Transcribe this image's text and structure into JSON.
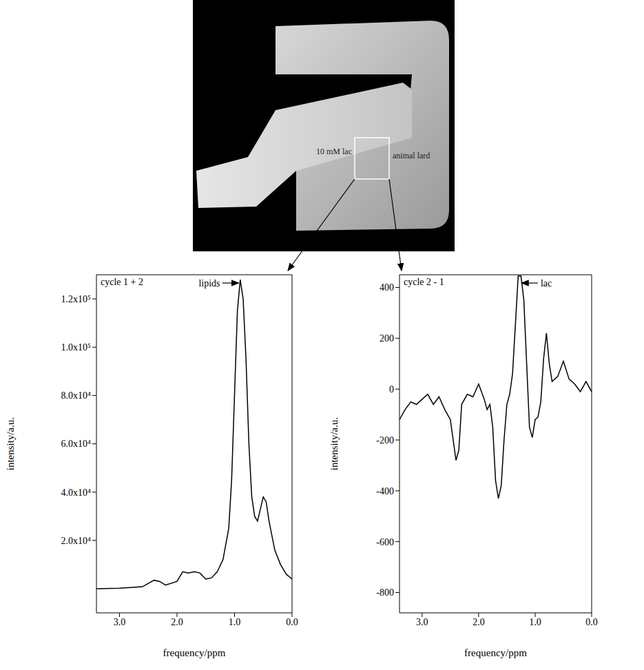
{
  "image": {
    "labels": [
      "10 mM lac",
      "animal lard"
    ]
  },
  "chart_data": [
    {
      "type": "line",
      "title": "cycle 1 + 2",
      "annotations": [
        "lipids"
      ],
      "x_label": "frequency/ppm",
      "y_label": "intensity/a.u.",
      "color": "#000000",
      "x": [
        3.4,
        3.0,
        2.6,
        2.4,
        2.3,
        2.2,
        2.0,
        1.9,
        1.8,
        1.7,
        1.6,
        1.5,
        1.4,
        1.3,
        1.2,
        1.1,
        1.05,
        1.0,
        0.95,
        0.9,
        0.85,
        0.8,
        0.75,
        0.7,
        0.65,
        0.6,
        0.55,
        0.5,
        0.45,
        0.4,
        0.3,
        0.2,
        0.1,
        0
      ],
      "values": [
        0,
        200,
        800,
        3500,
        3000,
        1500,
        3000,
        7000,
        6500,
        7000,
        6500,
        4000,
        4500,
        7000,
        12000,
        25000,
        45000,
        80000,
        115000,
        128000,
        120000,
        95000,
        60000,
        38000,
        30000,
        28000,
        33000,
        38000,
        36000,
        28000,
        16000,
        10000,
        6000,
        4000
      ],
      "xlim": [
        3.4,
        0
      ],
      "xticks": [
        {
          "value": 3,
          "label": "3.0"
        },
        {
          "value": 2,
          "label": "2.0"
        },
        {
          "value": 1,
          "label": "1.0"
        },
        {
          "value": 0,
          "label": "0.0"
        }
      ],
      "ylim": [
        -10000,
        130000
      ],
      "yticks": [
        {
          "value": 20000,
          "label": "2.0x10⁴"
        },
        {
          "value": 40000,
          "label": "4.0x10⁴"
        },
        {
          "value": 60000,
          "label": "6.0x10⁴"
        },
        {
          "value": 80000,
          "label": "8.0x10⁴"
        },
        {
          "value": 100000,
          "label": "1.0x10⁵"
        },
        {
          "value": 120000,
          "label": "1.2x10⁵"
        }
      ]
    },
    {
      "type": "line",
      "title": "cycle 2 - 1",
      "annotations": [
        "lac"
      ],
      "x_label": "frequency/ppm",
      "y_label": "intensity/a.u.",
      "color": "#000000",
      "x": [
        3.4,
        3.3,
        3.2,
        3.1,
        3.0,
        2.9,
        2.8,
        2.7,
        2.6,
        2.5,
        2.45,
        2.4,
        2.35,
        2.3,
        2.2,
        2.1,
        2.0,
        1.95,
        1.9,
        1.85,
        1.8,
        1.75,
        1.7,
        1.65,
        1.6,
        1.55,
        1.5,
        1.45,
        1.4,
        1.35,
        1.3,
        1.25,
        1.2,
        1.15,
        1.1,
        1.05,
        1.0,
        0.95,
        0.9,
        0.85,
        0.8,
        0.75,
        0.7,
        0.6,
        0.5,
        0.4,
        0.3,
        0.2,
        0.1,
        0.0
      ],
      "values": [
        -120,
        -80,
        -50,
        -60,
        -40,
        -20,
        -60,
        -30,
        -80,
        -120,
        -200,
        -280,
        -240,
        -60,
        -20,
        -30,
        20,
        -10,
        -40,
        -80,
        -60,
        -150,
        -360,
        -430,
        -380,
        -200,
        -60,
        -20,
        60,
        250,
        445,
        445,
        350,
        100,
        -150,
        -190,
        -120,
        -110,
        -50,
        120,
        220,
        100,
        30,
        50,
        110,
        40,
        20,
        -10,
        30,
        -10
      ],
      "xlim": [
        3.4,
        0
      ],
      "xticks": [
        {
          "value": 3,
          "label": "3.0"
        },
        {
          "value": 2,
          "label": "2.0"
        },
        {
          "value": 1,
          "label": "1.0"
        },
        {
          "value": 0,
          "label": "0.0"
        }
      ],
      "ylim": [
        -880,
        450
      ],
      "yticks": [
        -800,
        -600,
        -400,
        -200,
        0,
        200,
        400
      ]
    }
  ]
}
